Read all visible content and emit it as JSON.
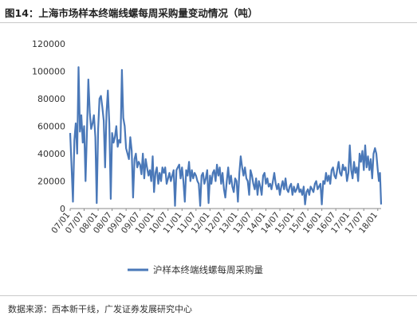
{
  "header": {
    "figure_title": "图14：上海市场样本终端线螺每周采购量变动情况（吨）"
  },
  "footer": {
    "source": "数据来源：西本新干线，广发证券发展研究中心"
  },
  "colors": {
    "series": "#4a78b8",
    "axis": "#8a8a8a",
    "text": "#333333"
  },
  "chart_data": {
    "type": "line",
    "title": "",
    "xlabel": "",
    "ylabel": "",
    "ylim": [
      0,
      120000
    ],
    "yticks": [
      0,
      20000,
      40000,
      60000,
      80000,
      100000,
      120000
    ],
    "ytick_labels": [
      "0",
      "20000",
      "40000",
      "60000",
      "80000",
      "100000",
      "120000"
    ],
    "xlim": [
      2007.0,
      2018.12
    ],
    "xtick_labels": [
      "07/01",
      "07/07",
      "08/01",
      "08/07",
      "09/01",
      "09/07",
      "10/01",
      "10/07",
      "11/01",
      "11/07",
      "12/01",
      "12/07",
      "13/01",
      "13/07",
      "14/01",
      "14/07",
      "15/01",
      "15/07",
      "16/01",
      "16/07",
      "17/01",
      "17/07",
      "18/01"
    ],
    "grid": false,
    "legend_position": "bottom",
    "series": [
      {
        "name": "沪样本终端线螺每周采购量",
        "x": [
          2007.0,
          2007.05,
          2007.1,
          2007.15,
          2007.2,
          2007.25,
          2007.3,
          2007.35,
          2007.4,
          2007.45,
          2007.5,
          2007.55,
          2007.6,
          2007.65,
          2007.7,
          2007.75,
          2007.8,
          2007.85,
          2007.9,
          2007.95,
          2008.0,
          2008.05,
          2008.1,
          2008.15,
          2008.2,
          2008.25,
          2008.3,
          2008.35,
          2008.4,
          2008.45,
          2008.5,
          2008.55,
          2008.6,
          2008.65,
          2008.7,
          2008.75,
          2008.8,
          2008.85,
          2008.9,
          2008.95,
          2009.0,
          2009.05,
          2009.1,
          2009.15,
          2009.2,
          2009.25,
          2009.3,
          2009.35,
          2009.4,
          2009.45,
          2009.5,
          2009.55,
          2009.6,
          2009.65,
          2009.7,
          2009.75,
          2009.8,
          2009.85,
          2009.9,
          2009.95,
          2010.0,
          2010.05,
          2010.1,
          2010.15,
          2010.2,
          2010.25,
          2010.3,
          2010.35,
          2010.4,
          2010.45,
          2010.5,
          2010.55,
          2010.6,
          2010.65,
          2010.7,
          2010.75,
          2010.8,
          2010.85,
          2010.9,
          2010.95,
          2011.0,
          2011.05,
          2011.1,
          2011.15,
          2011.2,
          2011.25,
          2011.3,
          2011.35,
          2011.4,
          2011.45,
          2011.5,
          2011.55,
          2011.6,
          2011.65,
          2011.7,
          2011.75,
          2011.8,
          2011.85,
          2011.9,
          2011.95,
          2012.0,
          2012.05,
          2012.1,
          2012.15,
          2012.2,
          2012.25,
          2012.3,
          2012.35,
          2012.4,
          2012.45,
          2012.5,
          2012.55,
          2012.6,
          2012.65,
          2012.7,
          2012.75,
          2012.8,
          2012.85,
          2012.9,
          2012.95,
          2013.0,
          2013.05,
          2013.1,
          2013.15,
          2013.2,
          2013.25,
          2013.3,
          2013.35,
          2013.4,
          2013.45,
          2013.5,
          2013.55,
          2013.6,
          2013.65,
          2013.7,
          2013.75,
          2013.8,
          2013.85,
          2013.9,
          2013.95,
          2014.0,
          2014.05,
          2014.1,
          2014.15,
          2014.2,
          2014.25,
          2014.3,
          2014.35,
          2014.4,
          2014.45,
          2014.5,
          2014.55,
          2014.6,
          2014.65,
          2014.7,
          2014.75,
          2014.8,
          2014.85,
          2014.9,
          2014.95,
          2015.0,
          2015.05,
          2015.1,
          2015.15,
          2015.2,
          2015.25,
          2015.3,
          2015.35,
          2015.4,
          2015.45,
          2015.5,
          2015.55,
          2015.6,
          2015.65,
          2015.7,
          2015.75,
          2015.8,
          2015.85,
          2015.9,
          2015.95,
          2016.0,
          2016.05,
          2016.1,
          2016.15,
          2016.2,
          2016.25,
          2016.3,
          2016.35,
          2016.4,
          2016.45,
          2016.5,
          2016.55,
          2016.6,
          2016.65,
          2016.7,
          2016.75,
          2016.8,
          2016.85,
          2016.9,
          2016.95,
          2017.0,
          2017.05,
          2017.1,
          2017.15,
          2017.2,
          2017.25,
          2017.3,
          2017.35,
          2017.4,
          2017.45,
          2017.5,
          2017.55,
          2017.6,
          2017.65,
          2017.7,
          2017.75,
          2017.8,
          2017.85,
          2017.9,
          2017.95,
          2018.0,
          2018.04,
          2018.08,
          2018.12
        ],
        "values": [
          55000,
          30000,
          5000,
          50000,
          62000,
          40000,
          103000,
          56000,
          68000,
          48000,
          60000,
          20000,
          55000,
          94000,
          70000,
          58000,
          62000,
          68000,
          52000,
          4000,
          58000,
          80000,
          82000,
          74000,
          64000,
          30000,
          70000,
          86000,
          62000,
          7000,
          55000,
          48000,
          52000,
          60000,
          45000,
          50000,
          48000,
          101000,
          66000,
          60000,
          44000,
          40000,
          36000,
          52000,
          42000,
          8000,
          36000,
          40000,
          30000,
          34000,
          32000,
          25000,
          40000,
          22000,
          36000,
          30000,
          24000,
          28000,
          20000,
          38000,
          12000,
          26000,
          30000,
          18000,
          26000,
          20000,
          30000,
          26000,
          30000,
          18000,
          22000,
          26000,
          20000,
          24000,
          28000,
          2000,
          28000,
          30000,
          32000,
          22000,
          30000,
          20000,
          5000,
          28000,
          24000,
          34000,
          20000,
          28000,
          22000,
          26000,
          24000,
          20000,
          18000,
          2000,
          24000,
          26000,
          18000,
          22000,
          28000,
          4000,
          24000,
          18000,
          26000,
          28000,
          20000,
          32000,
          24000,
          30000,
          18000,
          26000,
          14000,
          8000,
          20000,
          30000,
          18000,
          24000,
          16000,
          12000,
          22000,
          20000,
          5000,
          26000,
          38000,
          30000,
          24000,
          30000,
          22000,
          20000,
          10000,
          28000,
          24000,
          18000,
          14000,
          22000,
          10000,
          20000,
          16000,
          10000,
          24000,
          26000,
          18000,
          22000,
          16000,
          18000,
          14000,
          20000,
          26000,
          18000,
          14000,
          18000,
          10000,
          16000,
          20000,
          14000,
          22000,
          14000,
          12000,
          16000,
          18000,
          10000,
          16000,
          12000,
          14000,
          18000,
          12000,
          14000,
          10000,
          16000,
          3000,
          12000,
          14000,
          10000,
          16000,
          14000,
          12000,
          18000,
          20000,
          14000,
          16000,
          18000,
          3000,
          20000,
          18000,
          26000,
          20000,
          24000,
          18000,
          28000,
          30000,
          24000,
          22000,
          28000,
          34000,
          26000,
          24000,
          32000,
          28000,
          30000,
          20000,
          26000,
          46000,
          28000,
          22000,
          34000,
          26000,
          30000,
          20000,
          40000,
          34000,
          42000,
          28000,
          46000,
          30000,
          38000,
          28000,
          36000,
          22000,
          40000,
          44000,
          40000,
          28000,
          20000,
          26000,
          3000
        ]
      }
    ]
  }
}
